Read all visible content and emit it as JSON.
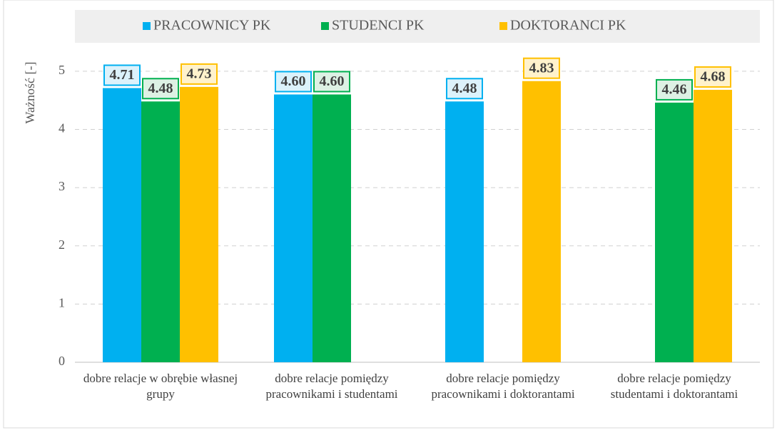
{
  "chart_data": {
    "type": "bar",
    "y_label": "Ważność [-]",
    "categories": [
      "dobre relacje w obrębie własnej grupy",
      "dobre relacje pomiędzy pracownikami i studentami",
      "dobre relacje pomiędzy pracownikami i doktorantami",
      "dobre relacje pomiędzy studentami i doktorantami"
    ],
    "series": [
      {
        "name": "PRACOWNICY PK",
        "color": "#00b0f0",
        "label_fill": "#dcf2fb",
        "values": [
          4.71,
          4.6,
          4.48,
          null
        ],
        "value_labels": [
          "4.71",
          "4.60",
          "4.48",
          null
        ]
      },
      {
        "name": "STUDENCI PK",
        "color": "#00b050",
        "label_fill": "#ddf1e4",
        "values": [
          4.48,
          4.6,
          null,
          4.46
        ],
        "value_labels": [
          "4.48",
          "4.60",
          null,
          "4.46"
        ]
      },
      {
        "name": "DOKTORANCI PK",
        "color": "#ffc000",
        "label_fill": "#fff2cc",
        "values": [
          4.73,
          null,
          4.83,
          4.68
        ],
        "value_labels": [
          "4.73",
          null,
          "4.83",
          "4.68"
        ]
      }
    ],
    "ylim": [
      0,
      5.5
    ],
    "yticks": [
      0,
      1,
      2,
      3,
      4,
      5
    ],
    "grid": true,
    "legend": "top"
  }
}
